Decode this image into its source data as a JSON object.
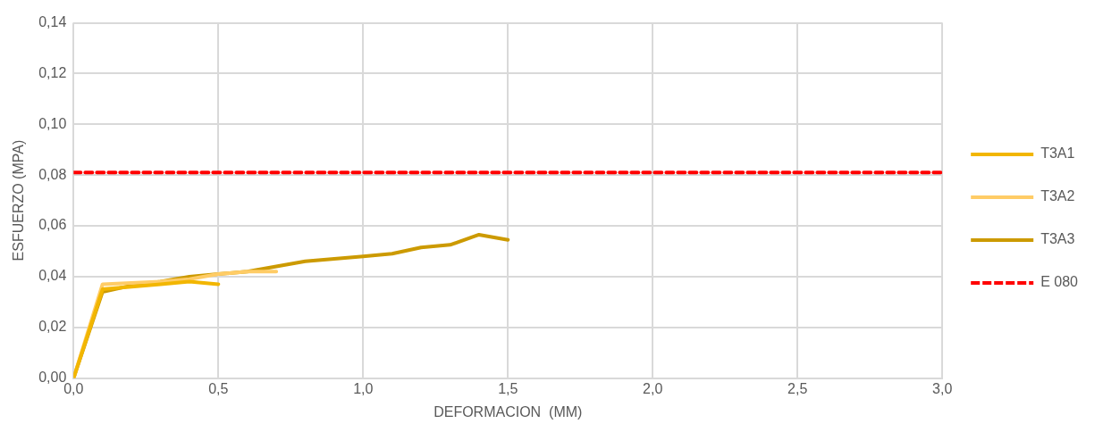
{
  "chart_data": {
    "type": "line",
    "xlabel": "DEFORMACION  (MM)",
    "ylabel": "ESFUERZO (MPA)",
    "xlim": [
      0,
      3
    ],
    "xticks": [
      {
        "value": 0,
        "label": "0,0"
      },
      {
        "value": 0.5,
        "label": "0,5"
      },
      {
        "value": 1,
        "label": "1,0"
      },
      {
        "value": 1.5,
        "label": "1,5"
      },
      {
        "value": 2,
        "label": "2,0"
      },
      {
        "value": 2.5,
        "label": "2,5"
      },
      {
        "value": 3,
        "label": "3,0"
      }
    ],
    "ylim": [
      0,
      0.14
    ],
    "yticks": [
      {
        "value": 0,
        "label": "0,00"
      },
      {
        "value": 0.02,
        "label": "0,02"
      },
      {
        "value": 0.04,
        "label": "0,04"
      },
      {
        "value": 0.06,
        "label": "0,06"
      },
      {
        "value": 0.08,
        "label": "0,08"
      },
      {
        "value": 0.1,
        "label": "0,10"
      },
      {
        "value": 0.12,
        "label": "0,12"
      },
      {
        "value": 0.14,
        "label": "0,14"
      }
    ],
    "grid": true,
    "legend": "right",
    "marker": "none",
    "series": [
      {
        "name": "T3A1",
        "color": "#f2b600",
        "x": [
          0,
          0.1,
          0.2,
          0.3,
          0.4,
          0.5
        ],
        "values": [
          0,
          0.035,
          0.036,
          0.037,
          0.038,
          0.037
        ]
      },
      {
        "name": "T3A2",
        "color": "#ffcc66",
        "x": [
          0,
          0.1,
          0.2,
          0.3,
          0.4,
          0.5,
          0.6,
          0.7
        ],
        "values": [
          0,
          0.037,
          0.0375,
          0.038,
          0.039,
          0.041,
          0.042,
          0.042
        ]
      },
      {
        "name": "T3A3",
        "color": "#cc9a00",
        "x": [
          0,
          0.1,
          0.2,
          0.3,
          0.4,
          0.5,
          0.6,
          0.7,
          0.8,
          0.9,
          1.0,
          1.1,
          1.2,
          1.3,
          1.4,
          1.5
        ],
        "values": [
          0,
          0.034,
          0.0365,
          0.038,
          0.04,
          0.041,
          0.042,
          0.044,
          0.046,
          0.047,
          0.048,
          0.049,
          0.0515,
          0.0525,
          0.0565,
          0.0545
        ]
      },
      {
        "name": "E 080",
        "color": "#ff0000",
        "line_style": "dashed",
        "x": [
          0,
          3
        ],
        "values": [
          0.081,
          0.081
        ]
      }
    ]
  }
}
